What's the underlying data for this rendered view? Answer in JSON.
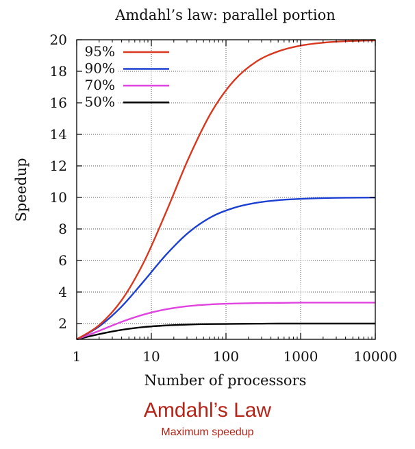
{
  "chart_data": {
    "type": "line",
    "title": "Amdahl’s law: parallel portion",
    "xlabel": "Number of processors",
    "ylabel": "Speedup",
    "xscale": "log",
    "xlim": [
      1,
      10000
    ],
    "ylim": [
      1,
      20
    ],
    "x_ticks": [
      "1",
      "10",
      "100",
      "1000",
      "10000"
    ],
    "y_ticks": [
      "2",
      "4",
      "6",
      "8",
      "10",
      "12",
      "14",
      "16",
      "18",
      "20"
    ],
    "grid": true,
    "legend_position": "top-left",
    "x": [
      1,
      2,
      4,
      8,
      16,
      32,
      64,
      128,
      256,
      512,
      1024,
      2048,
      4096,
      10000
    ],
    "series": [
      {
        "name": "95%",
        "color": "#d9381e",
        "values": [
          1.0,
          1.9,
          3.48,
          5.93,
          9.14,
          12.55,
          15.42,
          17.41,
          18.62,
          19.28,
          19.64,
          19.82,
          19.91,
          19.96
        ]
      },
      {
        "name": "90%",
        "color": "#1a3fd1",
        "values": [
          1.0,
          1.82,
          3.08,
          4.71,
          6.4,
          7.8,
          8.77,
          9.34,
          9.66,
          9.83,
          9.91,
          9.96,
          9.98,
          9.99
        ]
      },
      {
        "name": "70%",
        "color": "#e043e0",
        "values": [
          1.0,
          1.54,
          2.11,
          2.58,
          2.91,
          3.11,
          3.22,
          3.27,
          3.3,
          3.31,
          3.33,
          3.33,
          3.33,
          3.33
        ]
      },
      {
        "name": "50%",
        "color": "#000000",
        "values": [
          1.0,
          1.33,
          1.6,
          1.78,
          1.88,
          1.94,
          1.97,
          1.98,
          1.99,
          2.0,
          2.0,
          2.0,
          2.0,
          2.0
        ]
      }
    ]
  },
  "caption": {
    "title": "Amdahl’s Law",
    "subtitle": "Maximum speedup"
  }
}
